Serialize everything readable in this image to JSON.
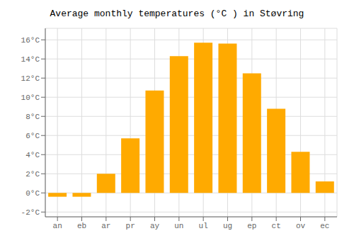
{
  "chart_data": {
    "type": "bar",
    "title": "Average monthly temperatures (°C ) in Støvring",
    "categories": [
      "an",
      "eb",
      "ar",
      "pr",
      "ay",
      "un",
      "ul",
      "ug",
      "ep",
      "ct",
      "ov",
      "ec"
    ],
    "values": [
      -0.4,
      -0.4,
      2.0,
      5.7,
      10.7,
      14.3,
      15.7,
      15.6,
      12.5,
      8.8,
      4.3,
      1.2
    ],
    "color": "#FFAA00",
    "ylim": [
      -2.5,
      17.2
    ],
    "yticks": [
      {
        "value": -2,
        "label": "-2°C"
      },
      {
        "value": 0,
        "label": "0°C"
      },
      {
        "value": 2,
        "label": "2°C"
      },
      {
        "value": 4,
        "label": "4°C"
      },
      {
        "value": 6,
        "label": "6°C"
      },
      {
        "value": 8,
        "label": "8°C"
      },
      {
        "value": 10,
        "label": "10°C"
      },
      {
        "value": 12,
        "label": "12°C"
      },
      {
        "value": 14,
        "label": "14°C"
      },
      {
        "value": 16,
        "label": "16°C"
      }
    ],
    "grid": true
  }
}
